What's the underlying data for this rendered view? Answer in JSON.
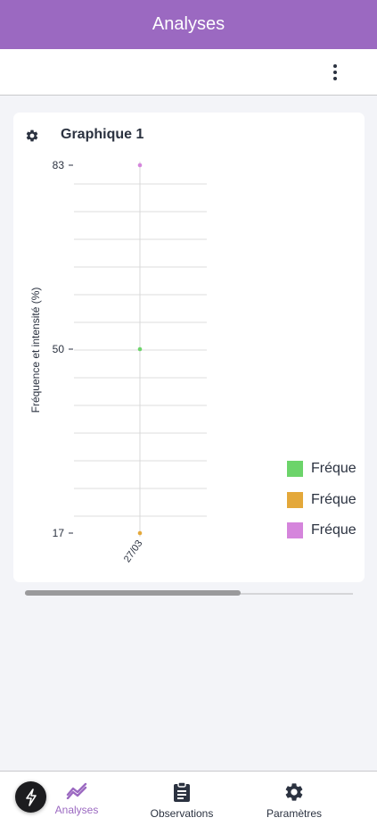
{
  "header": {
    "title": "Analyses"
  },
  "card": {
    "title": "Graphique 1"
  },
  "chart_data": {
    "type": "scatter",
    "ylabel": "Fréquence et intensité (%)",
    "categories": [
      "27/03"
    ],
    "yticks": [
      "83",
      "50",
      "17"
    ],
    "ylim": [
      17,
      83
    ],
    "grid": true,
    "legend_position": "right",
    "series": [
      {
        "name": "Fréque",
        "color": "#6cd46a",
        "values": [
          50
        ]
      },
      {
        "name": "Fréque",
        "color": "#e4a83a",
        "values": [
          17
        ]
      },
      {
        "name": "Fréque",
        "color": "#d585dc",
        "values": [
          83
        ]
      }
    ]
  },
  "tabs": [
    {
      "label": "Analyses",
      "icon": "chart-trend-icon",
      "active": true
    },
    {
      "label": "Observations",
      "icon": "clipboard-icon",
      "active": false
    },
    {
      "label": "Paramètres",
      "icon": "gear-icon",
      "active": false
    }
  ],
  "colors": {
    "accent": "#9b69c1",
    "text": "#2b3240"
  }
}
